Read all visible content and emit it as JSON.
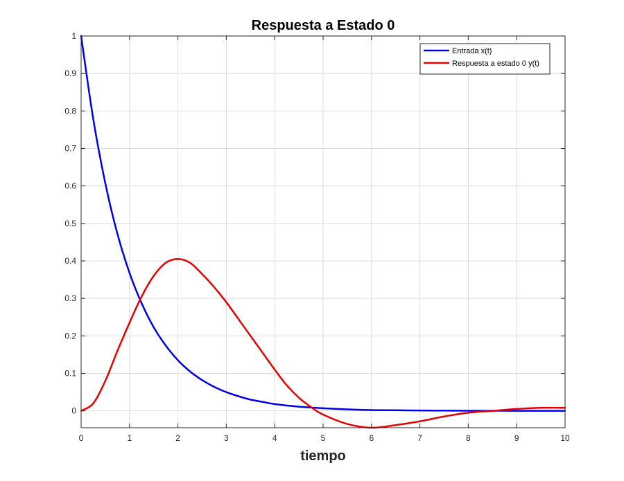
{
  "chart_data": {
    "type": "line",
    "title": "Respuesta a Estado 0",
    "xlabel": "tiempo",
    "ylabel": "",
    "xlim": [
      0,
      10
    ],
    "ylim": [
      -0.045,
      1
    ],
    "xticks": [
      0,
      1,
      2,
      3,
      4,
      5,
      6,
      7,
      8,
      9,
      10
    ],
    "xtick_labels": [
      "0",
      "1",
      "2",
      "3",
      "4",
      "5",
      "6",
      "7",
      "8",
      "9",
      "10"
    ],
    "yticks": [
      0,
      0.1,
      0.2,
      0.3,
      0.4,
      0.5,
      0.6,
      0.7,
      0.8,
      0.9,
      1
    ],
    "ytick_labels": [
      "0",
      "0.1",
      "0.2",
      "0.3",
      "0.4",
      "0.5",
      "0.6",
      "0.7",
      "0.8",
      "0.9",
      "1"
    ],
    "grid": true,
    "legend_position": "top-right",
    "series": [
      {
        "name": "Entrada x(t)",
        "color": "#0000e6",
        "x": [
          0,
          0.25,
          0.5,
          0.75,
          1,
          1.25,
          1.5,
          1.75,
          2,
          2.25,
          2.5,
          2.75,
          3,
          3.25,
          3.5,
          3.75,
          4,
          4.5,
          5,
          5.5,
          6,
          6.5,
          7,
          7.5,
          8,
          8.5,
          9,
          9.5,
          10
        ],
        "y": [
          1,
          0.779,
          0.607,
          0.472,
          0.368,
          0.287,
          0.223,
          0.174,
          0.135,
          0.105,
          0.082,
          0.064,
          0.05,
          0.039,
          0.03,
          0.024,
          0.018,
          0.011,
          0.007,
          0.004,
          0.002,
          0.0015,
          0.0009,
          0.0006,
          0.0003,
          0.0002,
          0.0001,
          0.0001,
          0.0
        ]
      },
      {
        "name": "Respuesta a estado 0 y(t)",
        "color": "#e60000",
        "x": [
          0,
          0.25,
          0.5,
          0.75,
          1,
          1.25,
          1.5,
          1.75,
          2,
          2.25,
          2.5,
          2.75,
          3,
          3.25,
          3.5,
          3.75,
          4,
          4.25,
          4.5,
          4.75,
          5,
          5.5,
          6,
          6.5,
          7,
          7.5,
          8,
          8.5,
          9,
          9.5,
          10
        ],
        "y": [
          0,
          0.02,
          0.08,
          0.16,
          0.235,
          0.305,
          0.36,
          0.395,
          0.405,
          0.395,
          0.365,
          0.33,
          0.29,
          0.245,
          0.2,
          0.155,
          0.11,
          0.068,
          0.035,
          0.01,
          -0.01,
          -0.035,
          -0.045,
          -0.038,
          -0.028,
          -0.015,
          -0.005,
          0.0,
          0.005,
          0.008,
          0.008
        ]
      }
    ]
  }
}
